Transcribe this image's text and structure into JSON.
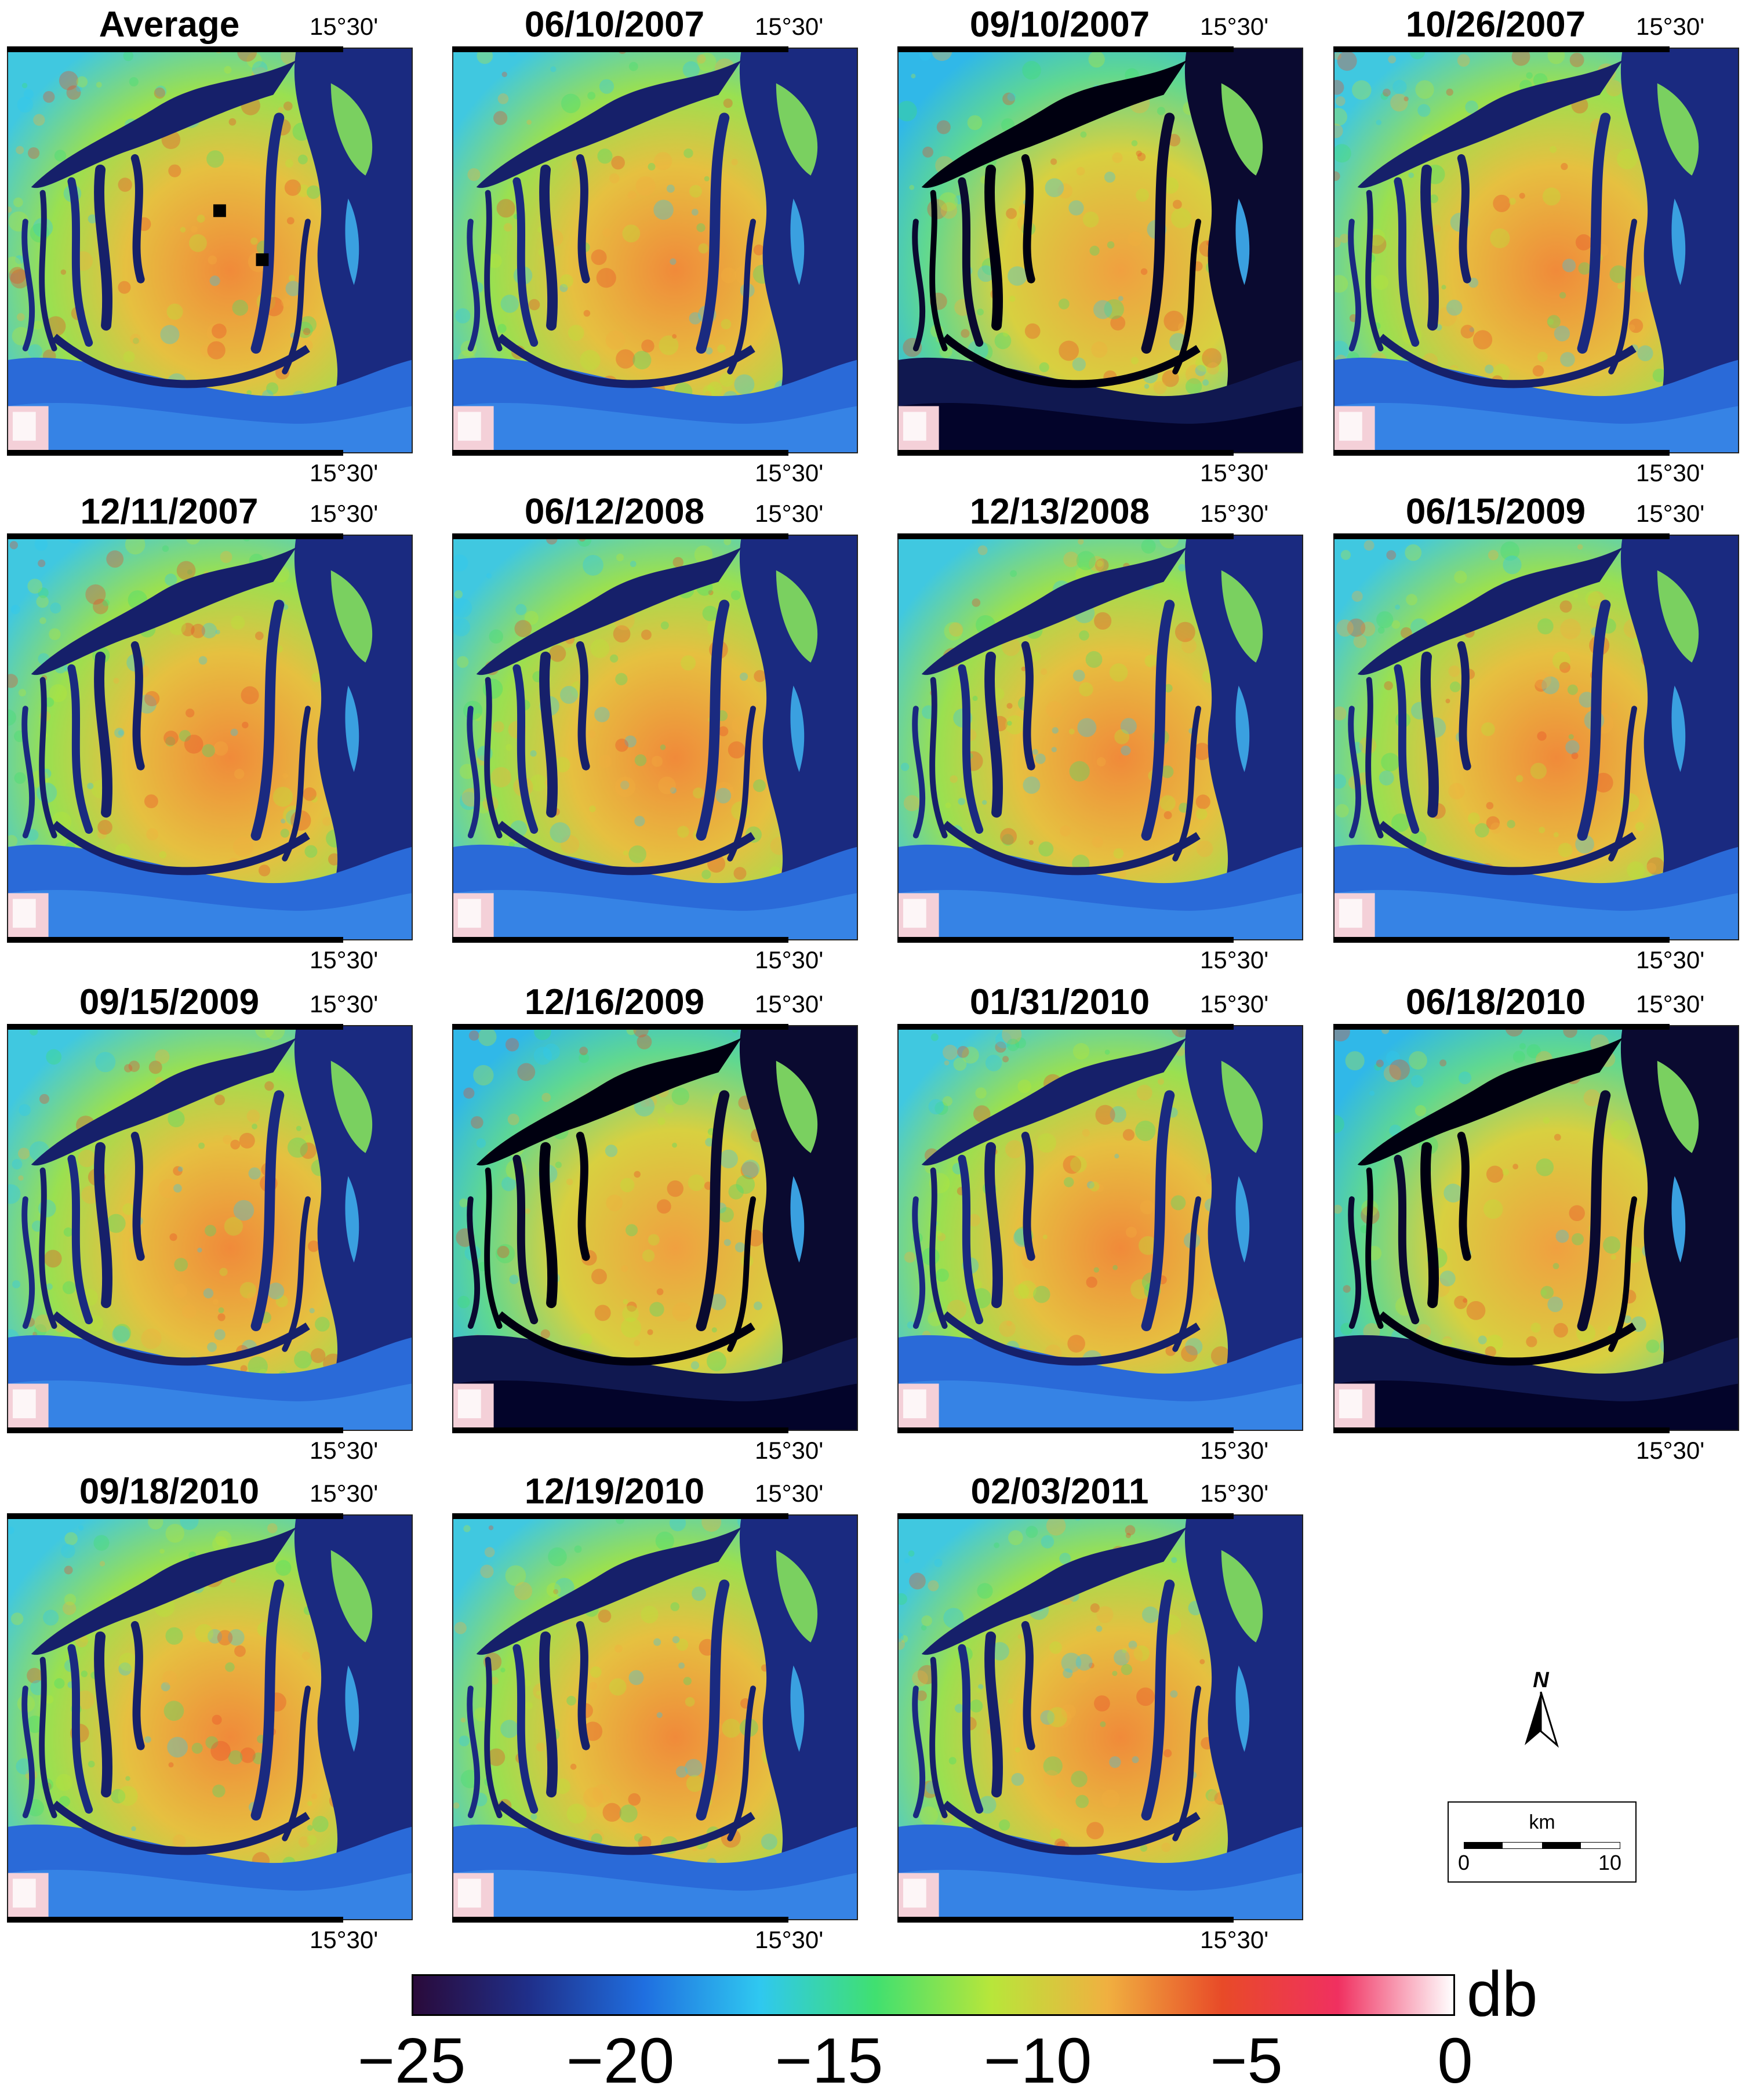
{
  "figure": {
    "edge_label": "15°30'",
    "panels": [
      {
        "title": "Average",
        "scene": 0
      },
      {
        "title": "06/10/2007",
        "scene": 1
      },
      {
        "title": "09/10/2007",
        "scene": 2
      },
      {
        "title": "10/26/2007",
        "scene": 3
      },
      {
        "title": "12/11/2007",
        "scene": 4
      },
      {
        "title": "06/12/2008",
        "scene": 5
      },
      {
        "title": "12/13/2008",
        "scene": 6
      },
      {
        "title": "06/15/2009",
        "scene": 7
      },
      {
        "title": "09/15/2009",
        "scene": 8
      },
      {
        "title": "12/16/2009",
        "scene": 9
      },
      {
        "title": "01/31/2010",
        "scene": 10
      },
      {
        "title": "06/18/2010",
        "scene": 11
      },
      {
        "title": "09/18/2010",
        "scene": 12
      },
      {
        "title": "12/19/2010",
        "scene": 13
      },
      {
        "title": "02/03/2011",
        "scene": 14
      }
    ]
  },
  "colorbar": {
    "unit": "db",
    "range": [
      -25,
      0
    ],
    "tick_labels": [
      "−25",
      "−20",
      "−15",
      "−10",
      "−5",
      "0"
    ],
    "tick_values": [
      -25,
      -20,
      -15,
      -10,
      -5,
      0
    ],
    "colors": [
      "#2a0a3a",
      "#1f2f8a",
      "#1f6fe0",
      "#2fc8f0",
      "#40e070",
      "#b8e63a",
      "#f0b040",
      "#e84a28",
      "#f03060",
      "#ffffff"
    ]
  },
  "north_arrow": {
    "label": "N",
    "icon": "north-arrow-icon"
  },
  "scale": {
    "unit": "km",
    "min_label": "0",
    "max_label": "10"
  }
}
